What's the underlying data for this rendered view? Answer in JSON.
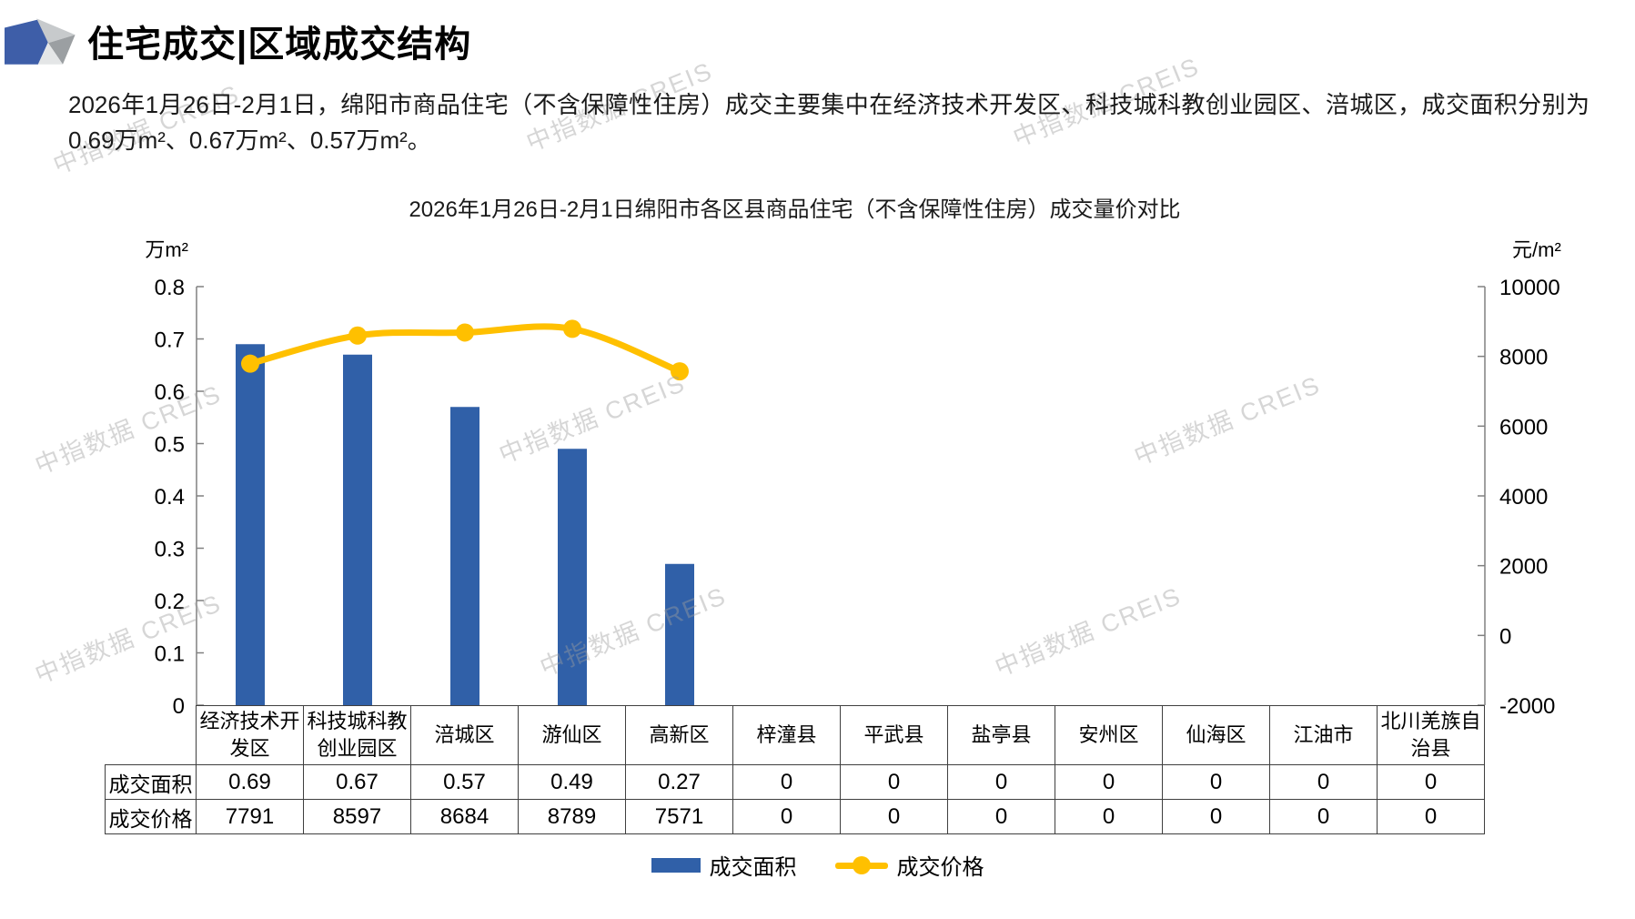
{
  "header": {
    "title": "住宅成交|区域成交结构"
  },
  "intro": {
    "text": "2026年1月26日-2月1日，绵阳市商品住宅（不含保障性住房）成交主要集中在经济技术开发区、科技城科教创业园区、涪城区，成交面积分别为0.69万m²、0.67万m²、0.57万m²。"
  },
  "watermark": {
    "text": "中指数据 CREIS"
  },
  "chart_data": {
    "type": "combo-bar-line",
    "title": "2026年1月26日-2月1日绵阳市各区县商品住宅（不含保障性住房）成交量价对比",
    "categories": [
      "经济技术开发区",
      "科技城科教创业园区",
      "涪城区",
      "游仙区",
      "高新区",
      "梓潼县",
      "平武县",
      "盐亭县",
      "安州区",
      "仙海区",
      "江油市",
      "北川羌族自治县"
    ],
    "series": [
      {
        "name": "成交面积",
        "type": "bar",
        "axis": "left",
        "color": "#3060A8",
        "values": [
          0.69,
          0.67,
          0.57,
          0.49,
          0.27,
          0,
          0,
          0,
          0,
          0,
          0,
          0
        ]
      },
      {
        "name": "成交价格",
        "type": "line",
        "axis": "right",
        "color": "#FFC000",
        "values": [
          7791,
          8597,
          8684,
          8789,
          7571,
          0,
          0,
          0,
          0,
          0,
          0,
          0
        ]
      }
    ],
    "left_axis": {
      "label": "万m²",
      "min": 0,
      "max": 0.8,
      "step": 0.1
    },
    "right_axis": {
      "label": "元/m²",
      "min": -2000,
      "max": 10000,
      "step": 2000
    },
    "grid": false,
    "legend_position": "bottom"
  },
  "table": {
    "row_headers": [
      "成交面积",
      "成交价格"
    ],
    "rows": [
      [
        "0.69",
        "0.67",
        "0.57",
        "0.49",
        "0.27",
        "0",
        "0",
        "0",
        "0",
        "0",
        "0",
        "0"
      ],
      [
        "7791",
        "8597",
        "8684",
        "8789",
        "7571",
        "0",
        "0",
        "0",
        "0",
        "0",
        "0",
        "0"
      ]
    ]
  }
}
